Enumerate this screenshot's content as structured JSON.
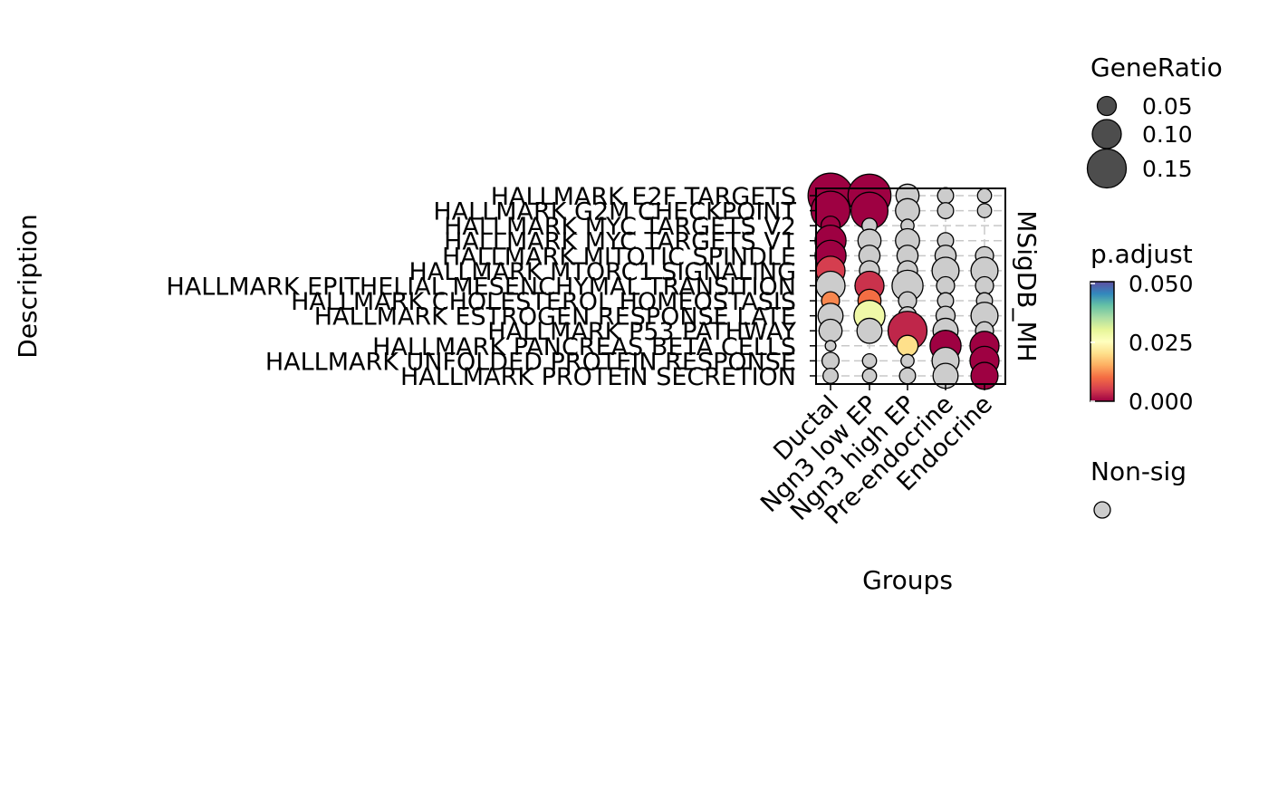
{
  "chart_data": {
    "type": "scatter",
    "subtype": "dot-plot",
    "xlabel": "Groups",
    "ylabel": "Description",
    "facet_label": "MSigDB_MH",
    "categories_x": [
      "Ductal",
      "Ngn3 low EP",
      "Ngn3 high EP",
      "Pre-endocrine",
      "Endocrine"
    ],
    "categories_y": [
      "HALLMARK E2F TARGETS",
      "HALLMARK G2M CHECKPOINT",
      "HALLMARK MYC TARGETS V2",
      "HALLMARK MYC TARGETS V1",
      "HALLMARK MITOTIC SPINDLE",
      "HALLMARK MTORC1 SIGNALING",
      "HALLMARK EPITHELIAL MESENCHYMAL TRANSITION",
      "HALLMARK CHOLESTEROL HOMEOSTASIS",
      "HALLMARK ESTROGEN RESPONSE LATE",
      "HALLMARK P53 PATHWAY",
      "HALLMARK PANCREAS BETA CELLS",
      "HALLMARK UNFOLDED PROTEIN RESPONSE",
      "HALLMARK PROTEIN SECRETION"
    ],
    "points": [
      {
        "x": "Ductal",
        "y": "HALLMARK E2F TARGETS",
        "gene_ratio": 0.18,
        "p_adjust": 0.0
      },
      {
        "x": "Ngn3 low EP",
        "y": "HALLMARK E2F TARGETS",
        "gene_ratio": 0.17,
        "p_adjust": 0.0
      },
      {
        "x": "Ngn3 high EP",
        "y": "HALLMARK E2F TARGETS",
        "gene_ratio": 0.07,
        "p_adjust": null
      },
      {
        "x": "Pre-endocrine",
        "y": "HALLMARK E2F TARGETS",
        "gene_ratio": 0.035,
        "p_adjust": null
      },
      {
        "x": "Endocrine",
        "y": "HALLMARK E2F TARGETS",
        "gene_ratio": 0.025,
        "p_adjust": null
      },
      {
        "x": "Ductal",
        "y": "HALLMARK G2M CHECKPOINT",
        "gene_ratio": 0.15,
        "p_adjust": 0.0
      },
      {
        "x": "Ngn3 low EP",
        "y": "HALLMARK G2M CHECKPOINT",
        "gene_ratio": 0.14,
        "p_adjust": 0.0
      },
      {
        "x": "Ngn3 high EP",
        "y": "HALLMARK G2M CHECKPOINT",
        "gene_ratio": 0.075,
        "p_adjust": null
      },
      {
        "x": "Pre-endocrine",
        "y": "HALLMARK G2M CHECKPOINT",
        "gene_ratio": 0.035,
        "p_adjust": null
      },
      {
        "x": "Endocrine",
        "y": "HALLMARK G2M CHECKPOINT",
        "gene_ratio": 0.025,
        "p_adjust": null
      },
      {
        "x": "Ductal",
        "y": "HALLMARK MYC TARGETS V2",
        "gene_ratio": 0.05,
        "p_adjust": 0.0
      },
      {
        "x": "Ngn3 low EP",
        "y": "HALLMARK MYC TARGETS V2",
        "gene_ratio": 0.03,
        "p_adjust": null
      },
      {
        "x": "Ngn3 high EP",
        "y": "HALLMARK MYC TARGETS V2",
        "gene_ratio": 0.02,
        "p_adjust": null
      },
      {
        "x": "Ductal",
        "y": "HALLMARK MYC TARGETS V1",
        "gene_ratio": 0.11,
        "p_adjust": 0.0
      },
      {
        "x": "Ngn3 low EP",
        "y": "HALLMARK MYC TARGETS V1",
        "gene_ratio": 0.07,
        "p_adjust": null
      },
      {
        "x": "Ngn3 high EP",
        "y": "HALLMARK MYC TARGETS V1",
        "gene_ratio": 0.075,
        "p_adjust": null
      },
      {
        "x": "Pre-endocrine",
        "y": "HALLMARK MYC TARGETS V1",
        "gene_ratio": 0.035,
        "p_adjust": null
      },
      {
        "x": "Ductal",
        "y": "HALLMARK MITOTIC SPINDLE",
        "gene_ratio": 0.11,
        "p_adjust": 0.0
      },
      {
        "x": "Ngn3 low EP",
        "y": "HALLMARK MITOTIC SPINDLE",
        "gene_ratio": 0.06,
        "p_adjust": null
      },
      {
        "x": "Ngn3 high EP",
        "y": "HALLMARK MITOTIC SPINDLE",
        "gene_ratio": 0.06,
        "p_adjust": null
      },
      {
        "x": "Pre-endocrine",
        "y": "HALLMARK MITOTIC SPINDLE",
        "gene_ratio": 0.06,
        "p_adjust": null
      },
      {
        "x": "Endocrine",
        "y": "HALLMARK MITOTIC SPINDLE",
        "gene_ratio": 0.045,
        "p_adjust": null
      },
      {
        "x": "Ductal",
        "y": "HALLMARK MTORC1 SIGNALING",
        "gene_ratio": 0.1,
        "p_adjust": 0.005
      },
      {
        "x": "Ngn3 low EP",
        "y": "HALLMARK MTORC1 SIGNALING",
        "gene_ratio": 0.055,
        "p_adjust": null
      },
      {
        "x": "Ngn3 high EP",
        "y": "HALLMARK MTORC1 SIGNALING",
        "gene_ratio": 0.055,
        "p_adjust": null
      },
      {
        "x": "Pre-endocrine",
        "y": "HALLMARK MTORC1 SIGNALING",
        "gene_ratio": 0.09,
        "p_adjust": null
      },
      {
        "x": "Endocrine",
        "y": "HALLMARK MTORC1 SIGNALING",
        "gene_ratio": 0.09,
        "p_adjust": null
      },
      {
        "x": "Ductal",
        "y": "HALLMARK EPITHELIAL MESENCHYMAL TRANSITION",
        "gene_ratio": 0.1,
        "p_adjust": null
      },
      {
        "x": "Ngn3 low EP",
        "y": "HALLMARK EPITHELIAL MESENCHYMAL TRANSITION",
        "gene_ratio": 0.1,
        "p_adjust": 0.004
      },
      {
        "x": "Ngn3 high EP",
        "y": "HALLMARK EPITHELIAL MESENCHYMAL TRANSITION",
        "gene_ratio": 0.11,
        "p_adjust": null
      },
      {
        "x": "Pre-endocrine",
        "y": "HALLMARK EPITHELIAL MESENCHYMAL TRANSITION",
        "gene_ratio": 0.045,
        "p_adjust": null
      },
      {
        "x": "Endocrine",
        "y": "HALLMARK EPITHELIAL MESENCHYMAL TRANSITION",
        "gene_ratio": 0.045,
        "p_adjust": null
      },
      {
        "x": "Ductal",
        "y": "HALLMARK CHOLESTEROL HOMEOSTASIS",
        "gene_ratio": 0.045,
        "p_adjust": 0.012
      },
      {
        "x": "Ngn3 low EP",
        "y": "HALLMARK CHOLESTEROL HOMEOSTASIS",
        "gene_ratio": 0.07,
        "p_adjust": 0.01
      },
      {
        "x": "Ngn3 high EP",
        "y": "HALLMARK CHOLESTEROL HOMEOSTASIS",
        "gene_ratio": 0.045,
        "p_adjust": null
      },
      {
        "x": "Pre-endocrine",
        "y": "HALLMARK CHOLESTEROL HOMEOSTASIS",
        "gene_ratio": 0.035,
        "p_adjust": null
      },
      {
        "x": "Endocrine",
        "y": "HALLMARK CHOLESTEROL HOMEOSTASIS",
        "gene_ratio": 0.035,
        "p_adjust": null
      },
      {
        "x": "Ductal",
        "y": "HALLMARK ESTROGEN RESPONSE LATE",
        "gene_ratio": 0.08,
        "p_adjust": null
      },
      {
        "x": "Ngn3 low EP",
        "y": "HALLMARK ESTROGEN RESPONSE LATE",
        "gene_ratio": 0.11,
        "p_adjust": 0.028
      },
      {
        "x": "Ngn3 high EP",
        "y": "HALLMARK ESTROGEN RESPONSE LATE",
        "gene_ratio": 0.045,
        "p_adjust": null
      },
      {
        "x": "Pre-endocrine",
        "y": "HALLMARK ESTROGEN RESPONSE LATE",
        "gene_ratio": 0.05,
        "p_adjust": null
      },
      {
        "x": "Endocrine",
        "y": "HALLMARK ESTROGEN RESPONSE LATE",
        "gene_ratio": 0.09,
        "p_adjust": null
      },
      {
        "x": "Ductal",
        "y": "HALLMARK P53 PATHWAY",
        "gene_ratio": 0.07,
        "p_adjust": null
      },
      {
        "x": "Ngn3 low EP",
        "y": "HALLMARK P53 PATHWAY",
        "gene_ratio": 0.08,
        "p_adjust": null
      },
      {
        "x": "Ngn3 high EP",
        "y": "HALLMARK P53 PATHWAY",
        "gene_ratio": 0.15,
        "p_adjust": 0.003
      },
      {
        "x": "Pre-endocrine",
        "y": "HALLMARK P53 PATHWAY",
        "gene_ratio": 0.08,
        "p_adjust": null
      },
      {
        "x": "Endocrine",
        "y": "HALLMARK P53 PATHWAY",
        "gene_ratio": 0.045,
        "p_adjust": null
      },
      {
        "x": "Ductal",
        "y": "HALLMARK PANCREAS BETA CELLS",
        "gene_ratio": 0.008,
        "p_adjust": null
      },
      {
        "x": "Ngn3 high EP",
        "y": "HALLMARK PANCREAS BETA CELLS",
        "gene_ratio": 0.06,
        "p_adjust": 0.02
      },
      {
        "x": "Pre-endocrine",
        "y": "HALLMARK PANCREAS BETA CELLS",
        "gene_ratio": 0.11,
        "p_adjust": 0.0
      },
      {
        "x": "Endocrine",
        "y": "HALLMARK PANCREAS BETA CELLS",
        "gene_ratio": 0.1,
        "p_adjust": 0.0
      },
      {
        "x": "Ductal",
        "y": "HALLMARK UNFOLDED PROTEIN RESPONSE",
        "gene_ratio": 0.04,
        "p_adjust": null
      },
      {
        "x": "Ngn3 low EP",
        "y": "HALLMARK UNFOLDED PROTEIN RESPONSE",
        "gene_ratio": 0.025,
        "p_adjust": null
      },
      {
        "x": "Ngn3 high EP",
        "y": "HALLMARK UNFOLDED PROTEIN RESPONSE",
        "gene_ratio": 0.02,
        "p_adjust": null
      },
      {
        "x": "Pre-endocrine",
        "y": "HALLMARK UNFOLDED PROTEIN RESPONSE",
        "gene_ratio": 0.09,
        "p_adjust": null
      },
      {
        "x": "Endocrine",
        "y": "HALLMARK UNFOLDED PROTEIN RESPONSE",
        "gene_ratio": 0.1,
        "p_adjust": 0.0
      },
      {
        "x": "Ductal",
        "y": "HALLMARK PROTEIN SECRETION",
        "gene_ratio": 0.03,
        "p_adjust": null
      },
      {
        "x": "Ngn3 low EP",
        "y": "HALLMARK PROTEIN SECRETION",
        "gene_ratio": 0.025,
        "p_adjust": null
      },
      {
        "x": "Ngn3 high EP",
        "y": "HALLMARK PROTEIN SECRETION",
        "gene_ratio": 0.035,
        "p_adjust": null
      },
      {
        "x": "Pre-endocrine",
        "y": "HALLMARK PROTEIN SECRETION",
        "gene_ratio": 0.08,
        "p_adjust": null
      },
      {
        "x": "Endocrine",
        "y": "HALLMARK PROTEIN SECRETION",
        "gene_ratio": 0.09,
        "p_adjust": 0.0
      }
    ],
    "size_legend": {
      "title": "GeneRatio",
      "values": [
        0.05,
        0.1,
        0.15
      ],
      "labels": [
        "0.05",
        "0.10",
        "0.15"
      ]
    },
    "color_legend": {
      "title": "p.adjust",
      "range": [
        0.0,
        0.05
      ],
      "labels": [
        "0.050",
        "0.025",
        "0.000"
      ],
      "palette": "Spectral",
      "stops": [
        "#9E0142",
        "#D53E4F",
        "#F46D43",
        "#FDAE61",
        "#FEE08B",
        "#FFFFBF",
        "#E6F598",
        "#ABDDA4",
        "#66C2A5",
        "#3288BD",
        "#5E4FA2"
      ]
    },
    "nonsig_legend": {
      "title": "Non-sig",
      "color": "#CCCCCC"
    },
    "grid": true,
    "grid_style": "dashed",
    "legend_position": "right"
  }
}
